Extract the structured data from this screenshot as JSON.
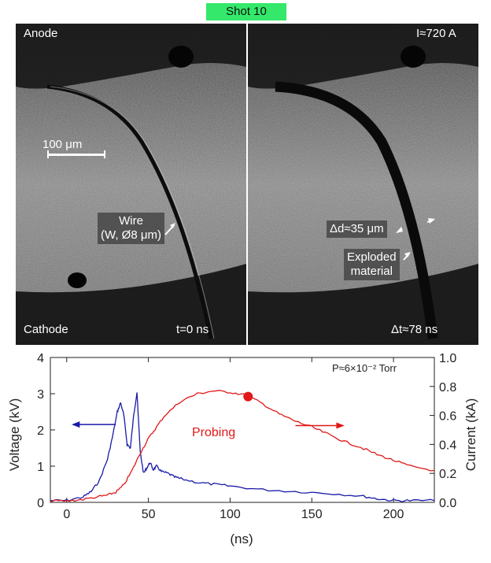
{
  "figure": {
    "shot_label": "Shot 10",
    "left_panel": {
      "top_left": "Anode",
      "bottom_left": "Cathode",
      "bottom_right": "t=0 ns",
      "scale_bar": "100 μm",
      "wire_label_line1": "Wire",
      "wire_label_line2": "(W, Ø8 μm)"
    },
    "right_panel": {
      "top_right": "I≈720 A",
      "bottom_right": "Δt≈78 ns",
      "delta_d": "Δd≈35 μm",
      "exploded_line1": "Exploded",
      "exploded_line2": "material"
    }
  },
  "chart_data": {
    "type": "line",
    "xlabel": "(ns)",
    "ylabel_left": "Voltage (kV)",
    "ylabel_right": "Current (kA)",
    "xlim": [
      -10,
      225
    ],
    "ylim_left": [
      0,
      4
    ],
    "ylim_right": [
      0,
      1.0
    ],
    "x_ticks": [
      0,
      50,
      100,
      150,
      200
    ],
    "y_ticks_left": [
      0,
      1,
      2,
      3,
      4
    ],
    "y_ticks_right": [
      "0.0",
      "0.2",
      "0.4",
      "0.6",
      "0.8",
      "1.0"
    ],
    "grid": false,
    "annotation_pressure": "P≈6×10⁻² Torr",
    "annotation_probing": "Probing",
    "probing_point": {
      "x": 111,
      "y": 0.73
    },
    "colors": {
      "voltage": "#1a1aa8",
      "current": "#e01818"
    },
    "series": [
      {
        "axis": "left",
        "color": "#1a1aa8",
        "x": [
          -10,
          0,
          10,
          15,
          20,
          25,
          28,
          31,
          33,
          35,
          37,
          39,
          41,
          43,
          45,
          47,
          49,
          51,
          53,
          55,
          58,
          62,
          66,
          70,
          80,
          90,
          100,
          120,
          140,
          160,
          180,
          190,
          200,
          210,
          225
        ],
        "y": [
          0.05,
          0.05,
          0.15,
          0.3,
          0.6,
          1.2,
          1.8,
          2.5,
          2.75,
          2.4,
          1.6,
          1.5,
          2.4,
          3.05,
          1.4,
          0.8,
          0.95,
          1.1,
          0.9,
          1.0,
          0.85,
          0.8,
          0.7,
          0.65,
          0.55,
          0.5,
          0.45,
          0.35,
          0.3,
          0.25,
          0.18,
          0.1,
          0.05,
          0.05,
          0.05
        ]
      },
      {
        "axis": "right",
        "color": "#e01818",
        "x": [
          -10,
          0,
          10,
          20,
          25,
          30,
          35,
          40,
          45,
          50,
          55,
          60,
          70,
          80,
          90,
          100,
          110,
          120,
          130,
          140,
          150,
          160,
          170,
          180,
          190,
          200,
          210,
          225
        ],
        "y": [
          0.01,
          0.01,
          0.02,
          0.04,
          0.05,
          0.07,
          0.12,
          0.22,
          0.34,
          0.44,
          0.52,
          0.6,
          0.7,
          0.75,
          0.77,
          0.76,
          0.74,
          0.68,
          0.61,
          0.56,
          0.52,
          0.47,
          0.42,
          0.38,
          0.33,
          0.29,
          0.25,
          0.22
        ]
      }
    ]
  }
}
